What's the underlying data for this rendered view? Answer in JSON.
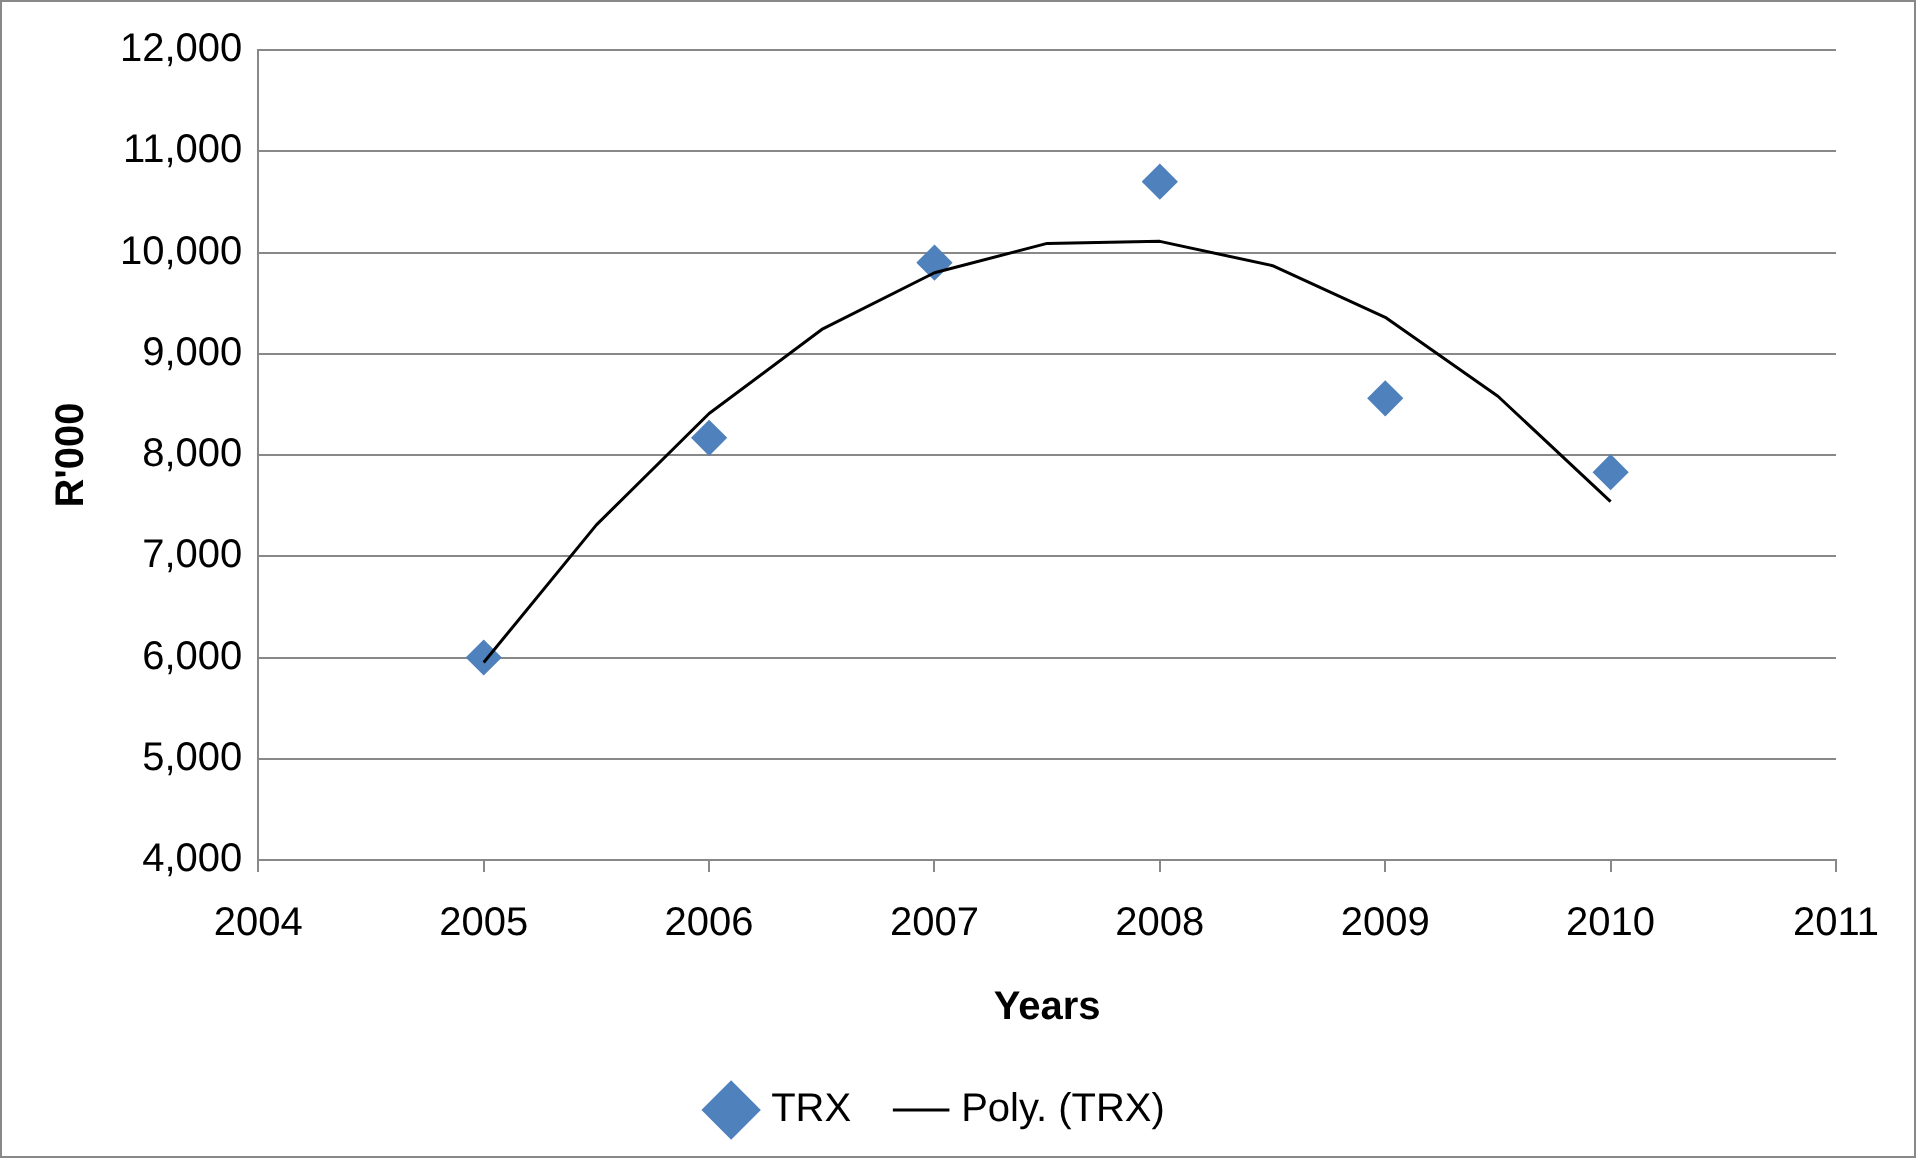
{
  "chart_data": {
    "type": "scatter",
    "xlabel": "Years",
    "ylabel": "R'000",
    "x": [
      2005,
      2006,
      2007,
      2008,
      2009,
      2010
    ],
    "series": [
      {
        "name": "TRX",
        "type": "scatter",
        "color": "#4f81bd",
        "marker": "diamond",
        "values": [
          6000,
          8170,
          9900,
          10700,
          8560,
          7830
        ]
      },
      {
        "name": "Poly. (TRX)",
        "type": "line",
        "color": "#000000",
        "marker": "none",
        "x": [
          2005,
          2005.5,
          2006,
          2006.5,
          2007,
          2007.5,
          2008,
          2008.5,
          2009,
          2009.5,
          2010
        ],
        "values": [
          5950,
          7310,
          8410,
          9240,
          9800,
          10090,
          10110,
          9870,
          9360,
          8580,
          7540
        ]
      }
    ],
    "xlim": [
      2004,
      2011
    ],
    "xticks": [
      2004,
      2005,
      2006,
      2007,
      2008,
      2009,
      2010,
      2011
    ],
    "ylim": [
      4000,
      12000
    ],
    "yticks": [
      {
        "value": 4000,
        "label": "4,000"
      },
      {
        "value": 5000,
        "label": "5,000"
      },
      {
        "value": 6000,
        "label": "6,000"
      },
      {
        "value": 7000,
        "label": "7,000"
      },
      {
        "value": 8000,
        "label": "8,000"
      },
      {
        "value": 9000,
        "label": "9,000"
      },
      {
        "value": 10000,
        "label": "10,000"
      },
      {
        "value": 11000,
        "label": "11,000"
      },
      {
        "value": 12000,
        "label": "12,000"
      }
    ],
    "grid": "y",
    "legend": "bottom"
  }
}
